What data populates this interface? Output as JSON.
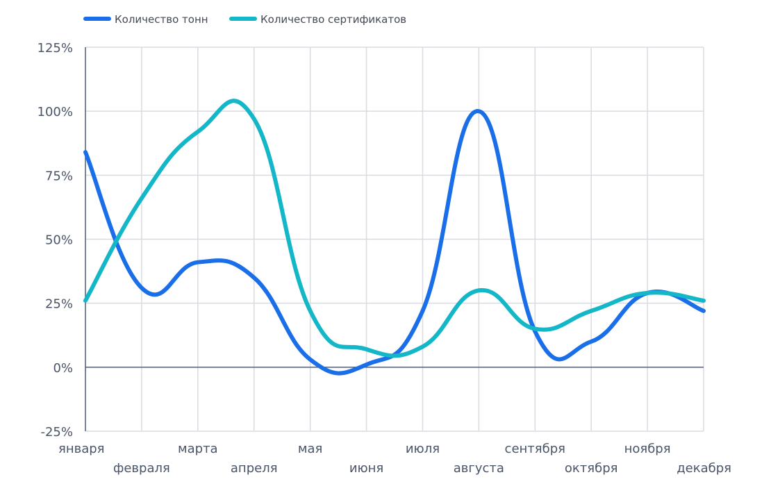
{
  "chart_data": {
    "type": "line",
    "legend_position": "top-left",
    "grid": true,
    "categories": [
      "января",
      "февраля",
      "марта",
      "апреля",
      "мая",
      "июня",
      "июля",
      "августа",
      "сентября",
      "октября",
      "ноября",
      "декабря"
    ],
    "ylim": [
      -25,
      125
    ],
    "yticks": [
      -25,
      0,
      25,
      50,
      75,
      100,
      125
    ],
    "ytick_labels": [
      "-25%",
      "0%",
      "25%",
      "50%",
      "75%",
      "100%",
      "125%"
    ],
    "series": [
      {
        "name": "Количество тонн",
        "color": "#1a6fe8",
        "values": [
          84,
          31,
          41,
          35,
          3,
          1,
          22,
          100,
          14,
          10,
          29,
          22
        ]
      },
      {
        "name": "Количество сертификатов",
        "color": "#13b7c7",
        "values": [
          26,
          66,
          92,
          97,
          22,
          7,
          8,
          30,
          15,
          22,
          29,
          26
        ]
      }
    ]
  }
}
